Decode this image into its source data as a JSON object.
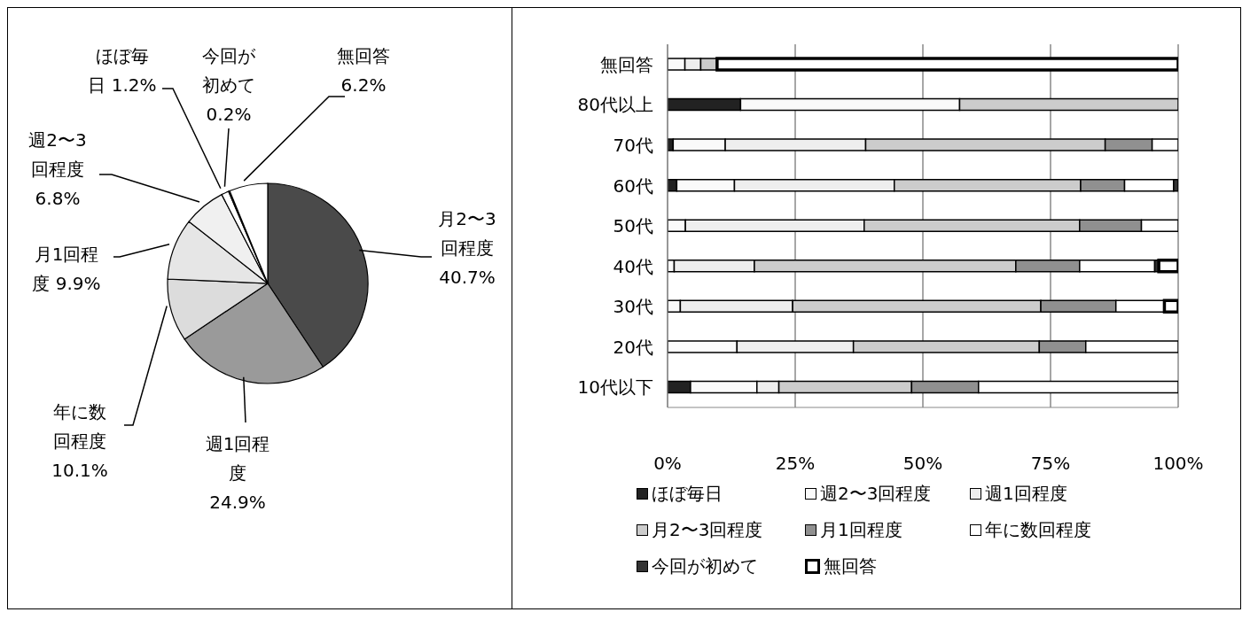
{
  "chart_data": [
    {
      "type": "pie",
      "categories": [
        "月2〜3回程度",
        "週1回程度",
        "年に数回程度",
        "月1回程度",
        "週2〜3回程度",
        "ほぼ毎日",
        "今回が初めて",
        "無回答"
      ],
      "values": [
        40.7,
        24.9,
        10.1,
        9.9,
        6.8,
        1.2,
        0.2,
        6.2
      ],
      "value_labels": [
        "40.7%",
        "24.9%",
        "10.1%",
        "9.9%",
        "6.8%",
        "1.2%",
        "0.2%",
        "6.2%"
      ],
      "colors": [
        "#4a4a4a",
        "#9a9a9a",
        "#dcdcdc",
        "#e6e6e6",
        "#f0f0f0",
        "#ffffff",
        "#ffffff",
        "#ffffff"
      ]
    },
    {
      "type": "bar",
      "orientation": "horizontal",
      "stacked": true,
      "categories": [
        "無回答",
        "80代以上",
        "70代",
        "60代",
        "50代",
        "40代",
        "30代",
        "20代",
        "10代以下"
      ],
      "series": [
        {
          "name": "ほぼ毎日",
          "color": "#222222",
          "values": [
            0,
            14.3,
            1.1,
            1.8,
            0,
            0,
            0,
            0,
            4.5
          ]
        },
        {
          "name": "週2〜3回程度",
          "color": "#fafafa",
          "values": [
            3.4,
            42.9,
            10.2,
            11.3,
            3.5,
            1.3,
            2.5,
            13.6,
            13.0
          ]
        },
        {
          "name": "週1回程度",
          "color": "#eeeeee",
          "values": [
            3.1,
            0,
            27.5,
            31.3,
            35.0,
            15.7,
            22.0,
            22.8,
            4.3
          ]
        },
        {
          "name": "月2〜3回程度",
          "color": "#cccccc",
          "values": [
            3.2,
            42.8,
            46.9,
            36.5,
            42.2,
            51.2,
            48.6,
            36.4,
            26.0
          ]
        },
        {
          "name": "月1回程度",
          "color": "#909090",
          "values": [
            0,
            0,
            9.2,
            8.6,
            12.1,
            12.5,
            14.7,
            9.1,
            13.1
          ]
        },
        {
          "name": "年に数回程度",
          "color": "#ffffff",
          "values": [
            0,
            0,
            5.1,
            9.6,
            7.2,
            14.7,
            9.5,
            18.1,
            39.1
          ]
        },
        {
          "name": "今回が初めて",
          "color": "#333333",
          "values": [
            0,
            0,
            0,
            0.9,
            0,
            0.8,
            0,
            0,
            0
          ]
        },
        {
          "name": "無回答",
          "color": "#ffffff",
          "values": [
            90.3,
            0,
            0,
            0,
            0,
            3.8,
            2.7,
            0,
            0
          ]
        }
      ],
      "xlim": [
        0,
        100
      ],
      "xticks": [
        {
          "value": 0,
          "label": "0%"
        },
        {
          "value": 25,
          "label": "25%"
        },
        {
          "value": 50,
          "label": "50%"
        },
        {
          "value": 75,
          "label": "75%"
        },
        {
          "value": 100,
          "label": "100%"
        }
      ],
      "grid": "x",
      "legend": "bottom"
    }
  ]
}
